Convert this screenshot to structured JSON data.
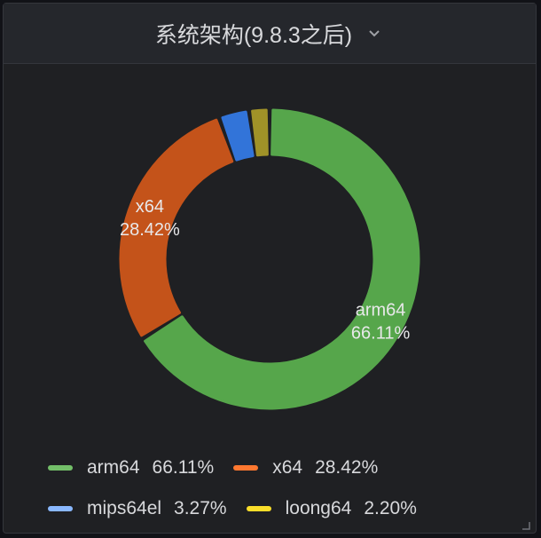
{
  "panel": {
    "title": "系统架构(9.8.3之后)",
    "title_icon": "chevron-down-icon"
  },
  "chart_data": {
    "type": "pie",
    "donut": true,
    "slices": [
      {
        "name": "arm64",
        "percent": 66.11,
        "percent_label": "66.11%",
        "color": "#56a64b"
      },
      {
        "name": "x64",
        "percent": 28.42,
        "percent_label": "28.42%",
        "color": "#c4531a"
      },
      {
        "name": "mips64el",
        "percent": 3.27,
        "percent_label": "3.27%",
        "color": "#3274d9"
      },
      {
        "name": "loong64",
        "percent": 2.2,
        "percent_label": "2.20%",
        "color": "#a09228"
      }
    ],
    "legend_colors": [
      "#73bf69",
      "#ff7830",
      "#8ab8ff",
      "#fade2a"
    ],
    "labels_on_chart": [
      "arm64",
      "x64"
    ],
    "legend_placement": "bottom"
  }
}
